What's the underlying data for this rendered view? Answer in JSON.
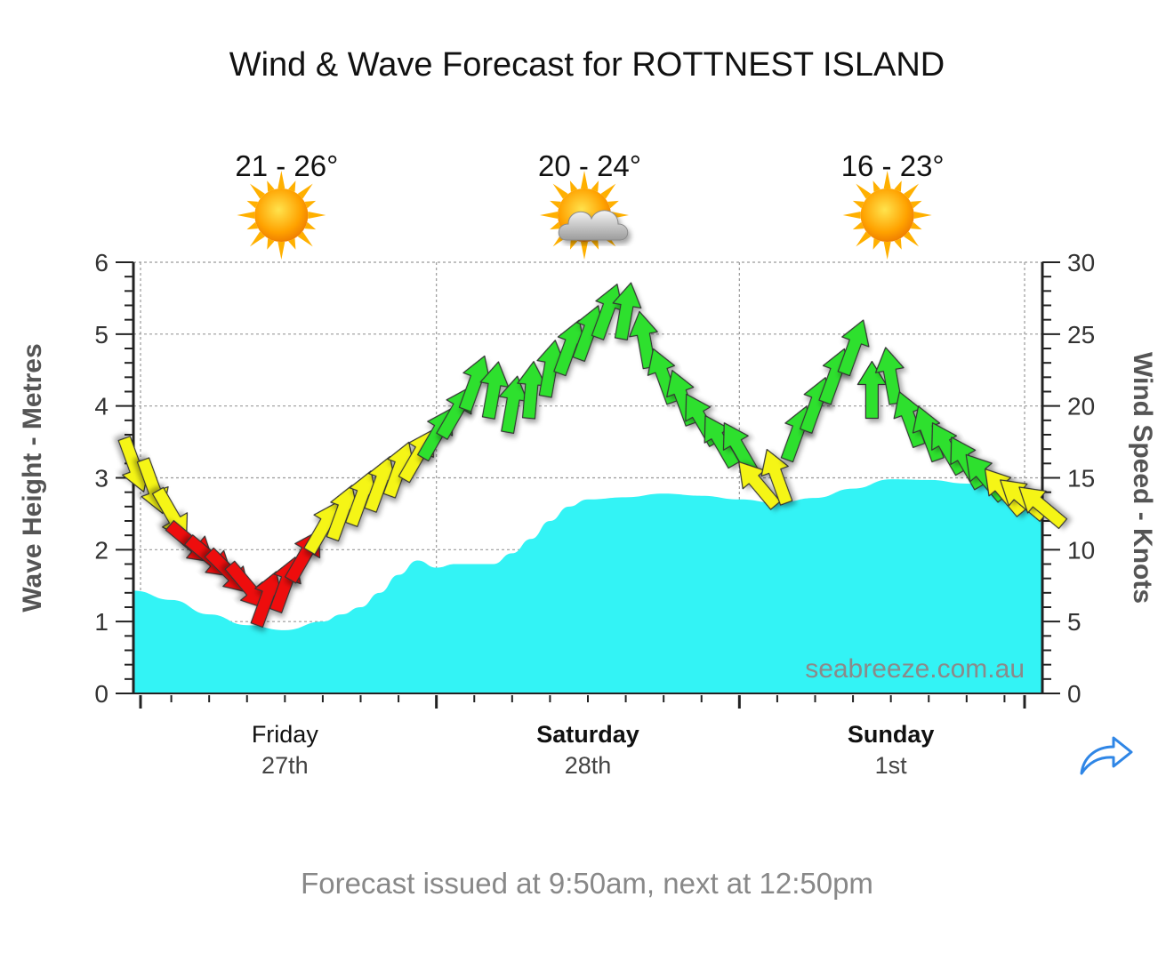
{
  "title": "Wind & Wave Forecast for ROTTNEST ISLAND",
  "footer": "Forecast issued at 9:50am, next at 12:50pm",
  "watermark": "seabreeze.com.au",
  "icons": {
    "share": "share-arrow-icon"
  },
  "colors": {
    "wave_fill": "#33f3f5",
    "arrow_light": "#f5f518",
    "arrow_moderate": "#2ee02e",
    "arrow_strong": "#ee1111",
    "share_icon": "#2f86e6"
  },
  "days": [
    {
      "name": "Friday",
      "date": "27th",
      "bold": false,
      "temp": "21 - 26°",
      "weather_icon": "sun-icon"
    },
    {
      "name": "Saturday",
      "date": "28th",
      "bold": true,
      "temp": "20 - 24°",
      "weather_icon": "sun-cloud-icon"
    },
    {
      "name": "Sunday",
      "date": "1st",
      "bold": true,
      "temp": "16 - 23°",
      "weather_icon": "sun-icon"
    }
  ],
  "chart_data": {
    "type": "area",
    "left_axis": {
      "label": "Wave Height - Metres",
      "range": [
        0,
        6
      ],
      "ticks": [
        "0",
        "1",
        "2",
        "3",
        "4",
        "5",
        "6"
      ]
    },
    "right_axis": {
      "label": "Wind Speed - Knots",
      "range": [
        0,
        30
      ],
      "ticks": [
        "0",
        "5",
        "10",
        "15",
        "20",
        "25",
        "30"
      ]
    },
    "x_range_hours": [
      0,
      72
    ],
    "grid": true,
    "wave_height": {
      "hours": [
        0,
        3,
        6,
        9,
        12,
        15,
        16.5,
        18,
        19.5,
        21,
        22.5,
        24,
        25.5,
        27,
        28.5,
        30,
        31.5,
        33,
        34.5,
        36,
        39,
        42,
        45,
        48,
        51,
        54,
        57,
        60,
        63,
        66,
        69,
        72
      ],
      "values": [
        1.43,
        1.3,
        1.1,
        0.95,
        0.88,
        1.0,
        1.1,
        1.2,
        1.4,
        1.65,
        1.85,
        1.75,
        1.8,
        1.8,
        1.8,
        1.95,
        2.15,
        2.4,
        2.6,
        2.7,
        2.73,
        2.78,
        2.75,
        2.7,
        2.65,
        2.72,
        2.85,
        2.98,
        2.97,
        2.92,
        2.85,
        2.63
      ]
    },
    "wind": {
      "hours": [
        0,
        1.5,
        3,
        4.5,
        6,
        7.5,
        9,
        10.5,
        12,
        13.5,
        15,
        16.5,
        18,
        19.5,
        21,
        22.5,
        24,
        25.5,
        27,
        28.5,
        30,
        31.5,
        33,
        34.5,
        36,
        37.5,
        39,
        40.5,
        42,
        43.5,
        45,
        46.5,
        48,
        49.5,
        51,
        52.5,
        54,
        55.5,
        57,
        58.5,
        60,
        61.5,
        63,
        64.5,
        66,
        67.5,
        69,
        70.5,
        72
      ],
      "speed_knots": [
        16,
        14.5,
        12.5,
        10.5,
        9.5,
        8.5,
        7.5,
        6.5,
        7.5,
        9.5,
        11.5,
        12.5,
        13.5,
        14.5,
        15.5,
        16.5,
        18,
        19.5,
        21.5,
        21,
        20,
        21,
        22.5,
        24,
        25,
        26.5,
        26.5,
        24.5,
        22,
        20.5,
        19,
        17.5,
        17,
        14.5,
        15,
        18,
        20,
        22,
        24,
        21,
        22,
        19,
        18,
        17,
        16,
        15,
        14,
        13.5,
        13
      ],
      "strength_colors": [
        "yellow",
        "yellow",
        "yellow",
        "red",
        "red",
        "red",
        "red",
        "red",
        "red",
        "red",
        "yellow",
        "yellow",
        "yellow",
        "yellow",
        "yellow",
        "yellow",
        "green",
        "green",
        "green",
        "green",
        "green",
        "green",
        "green",
        "green",
        "green",
        "green",
        "green",
        "green",
        "green",
        "green",
        "green",
        "green",
        "green",
        "yellow",
        "yellow",
        "green",
        "green",
        "green",
        "green",
        "green",
        "green",
        "green",
        "green",
        "green",
        "green",
        "green",
        "yellow",
        "yellow",
        "yellow"
      ],
      "direction_from_deg": [
        340,
        340,
        330,
        310,
        310,
        315,
        320,
        200,
        200,
        210,
        210,
        200,
        200,
        200,
        200,
        210,
        210,
        210,
        200,
        190,
        190,
        185,
        190,
        200,
        200,
        200,
        190,
        170,
        160,
        160,
        150,
        150,
        150,
        140,
        160,
        200,
        200,
        200,
        200,
        180,
        170,
        160,
        160,
        150,
        150,
        140,
        140,
        130,
        130
      ]
    }
  }
}
